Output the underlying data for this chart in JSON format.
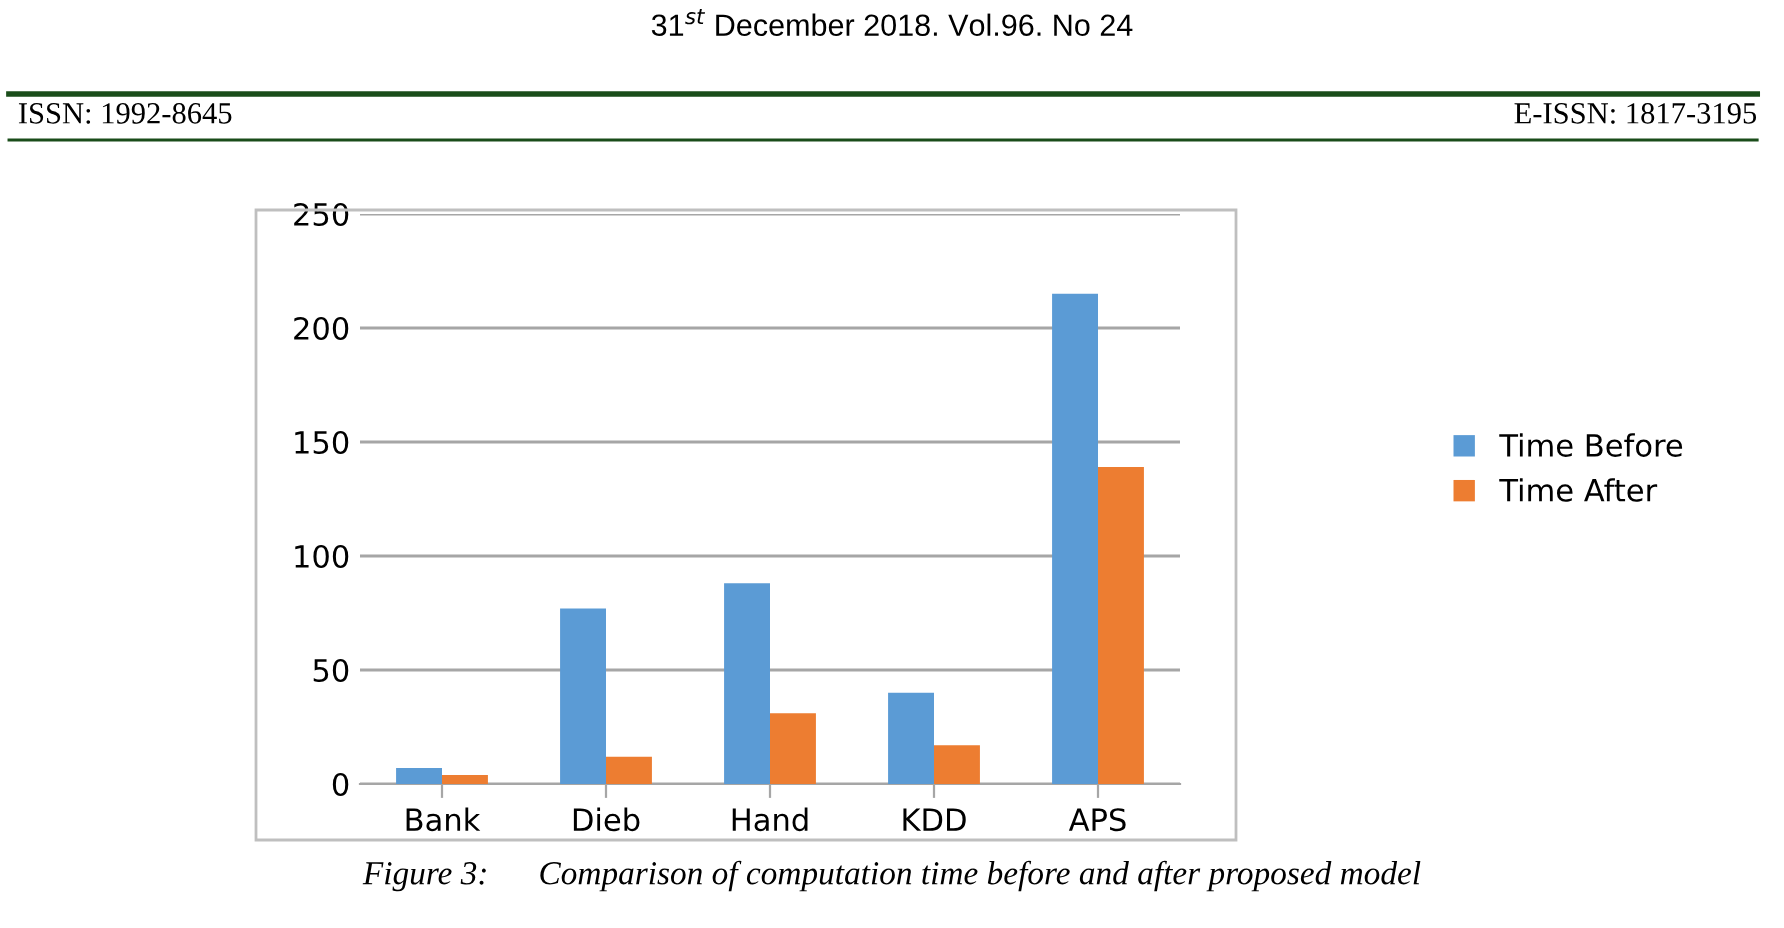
{
  "chart_data": {
    "type": "bar",
    "categories": [
      "Bank",
      "Dieb",
      "Hand",
      "KDD",
      "APS"
    ],
    "series": [
      {
        "name": "Time Before",
        "color": "#5b9bd5",
        "values": [
          7,
          77,
          88,
          40,
          215
        ]
      },
      {
        "name": "Time After",
        "color": "#ed7d31",
        "values": [
          4,
          12,
          31,
          17,
          139
        ]
      }
    ],
    "ylim": [
      0,
      250
    ],
    "yticks": [
      0,
      50,
      100,
      150,
      200,
      250
    ],
    "grid": "y",
    "legend": "right",
    "annotations": [
      "31$^{st}$ December 2018. Vol.96. No 24",
      "ISSN: 1992-8645",
      "E-ISSN: 1817-3195",
      "Figure 3:      Comparison of computation time before and after proposed model"
    ]
  }
}
